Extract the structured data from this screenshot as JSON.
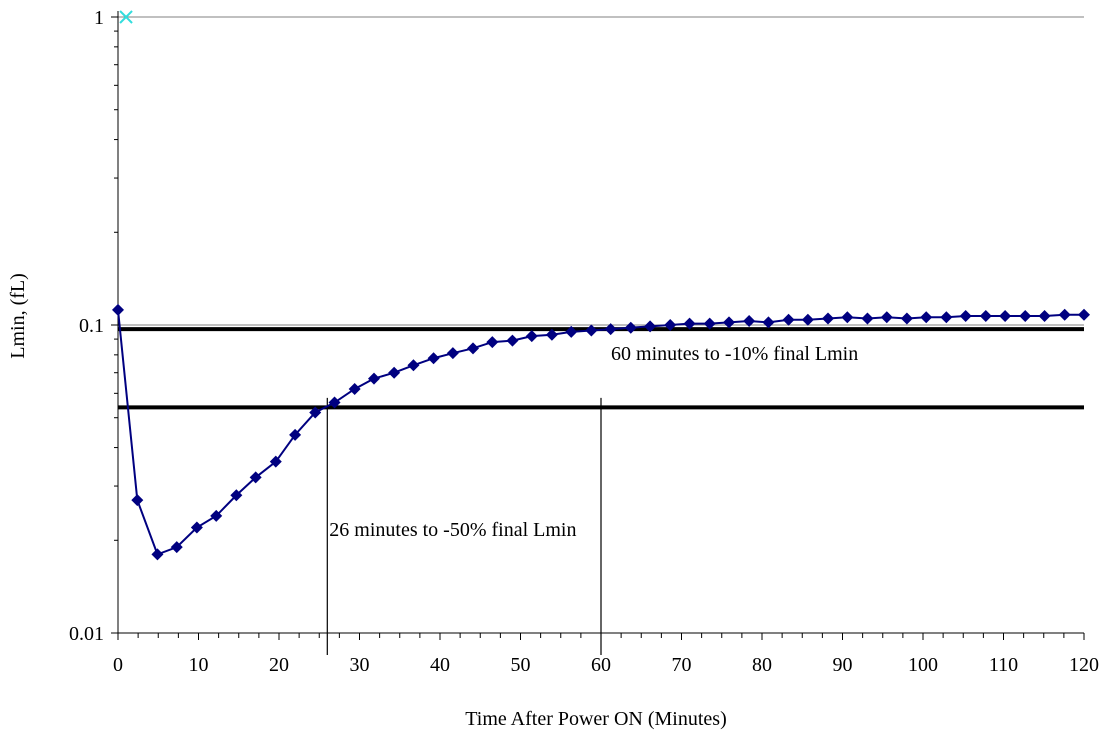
{
  "chart_data": {
    "type": "line",
    "title": "",
    "xlabel": "Time After Power ON  (Minutes)",
    "ylabel": "Lmin, (fL)",
    "xlim": [
      0,
      120
    ],
    "ylim": [
      0.01,
      1
    ],
    "y_scale": "log",
    "grid": "horizontal major gridlines at decades",
    "x_ticks": [
      "0",
      "10",
      "20",
      "30",
      "40",
      "50",
      "60",
      "70",
      "80",
      "90",
      "100",
      "110",
      "120"
    ],
    "y_ticks": [
      "0.01",
      "0.1",
      "1"
    ],
    "series": [
      {
        "marker": "diamond",
        "color": "#000080",
        "x": [
          0,
          2.4,
          4.9,
          7.3,
          9.8,
          12.2,
          14.7,
          17.1,
          19.6,
          22,
          24.5,
          26.9,
          29.4,
          31.8,
          34.3,
          36.7,
          39.2,
          41.6,
          44.1,
          46.5,
          49,
          51.4,
          53.9,
          56.3,
          58.8,
          61.2,
          63.7,
          66.1,
          68.6,
          71,
          73.5,
          75.9,
          78.4,
          80.8,
          83.3,
          85.7,
          88.2,
          90.6,
          93.1,
          95.5,
          98,
          100.4,
          102.9,
          105.3,
          107.8,
          110.2,
          112.7,
          115.1,
          117.6,
          120
        ],
        "y": [
          0.112,
          0.027,
          0.018,
          0.019,
          0.022,
          0.024,
          0.028,
          0.032,
          0.036,
          0.044,
          0.052,
          0.056,
          0.062,
          0.067,
          0.07,
          0.074,
          0.078,
          0.081,
          0.084,
          0.088,
          0.089,
          0.092,
          0.093,
          0.095,
          0.096,
          0.097,
          0.098,
          0.099,
          0.1,
          0.101,
          0.101,
          0.102,
          0.103,
          0.102,
          0.104,
          0.104,
          0.105,
          0.106,
          0.105,
          0.106,
          0.105,
          0.106,
          0.106,
          0.107,
          0.107,
          0.107,
          0.107,
          0.107,
          0.108,
          0.108
        ]
      },
      {
        "marker": "x",
        "color": "#33dddd",
        "x": [
          1
        ],
        "y": [
          1
        ]
      }
    ],
    "reference_lines": [
      {
        "y": 0.097
      },
      {
        "y": 0.054
      }
    ],
    "vertical_markers": [
      26,
      60
    ],
    "annotations": [
      {
        "text": "60 minutes to -10% final Lmin",
        "x": 61,
        "y": 0.081
      },
      {
        "text": "26 minutes to -50% final Lmin",
        "x": 26,
        "y": 0.0218
      }
    ]
  }
}
